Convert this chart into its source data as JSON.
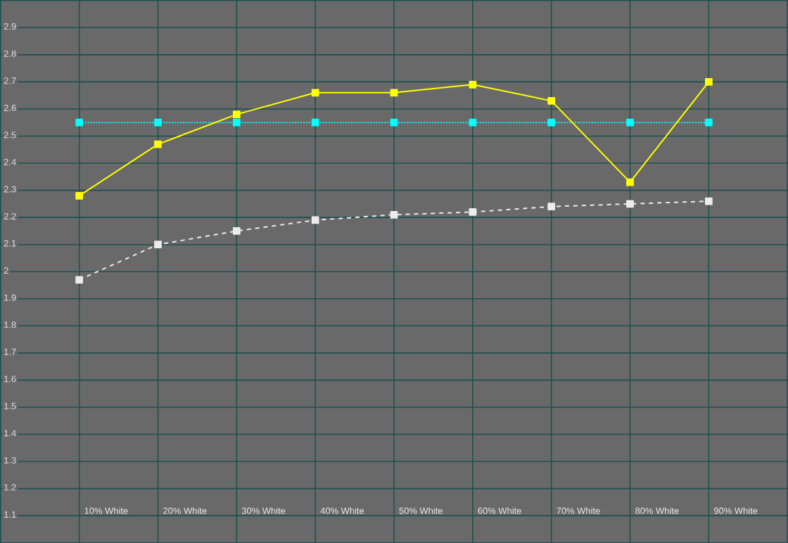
{
  "chart_data": {
    "type": "line",
    "categories": [
      "10% White",
      "20% White",
      "30% White",
      "40% White",
      "50% White",
      "60% White",
      "70% White",
      "80% White",
      "90% White"
    ],
    "ylim": [
      1.0,
      3.0
    ],
    "yticks": [
      1.1,
      1.2,
      1.3,
      1.4,
      1.5,
      1.6,
      1.7,
      1.8,
      1.9,
      2,
      2.1,
      2.2,
      2.3,
      2.4,
      2.5,
      2.6,
      2.7,
      2.8,
      2.9
    ],
    "grid": true,
    "marker": "square",
    "series": [
      {
        "color": "#00ffff",
        "line_style": "dotted",
        "values": [
          2.55,
          2.55,
          2.55,
          2.55,
          2.55,
          2.55,
          2.55,
          2.55,
          2.55
        ]
      },
      {
        "color": "#ececec",
        "line_style": "dashed",
        "values": [
          1.97,
          2.1,
          2.15,
          2.19,
          2.21,
          2.22,
          2.24,
          2.25,
          2.26
        ]
      },
      {
        "color": "#ffff00",
        "line_style": "solid",
        "values": [
          2.28,
          2.47,
          2.58,
          2.66,
          2.66,
          2.69,
          2.63,
          2.33,
          2.7
        ]
      }
    ]
  }
}
